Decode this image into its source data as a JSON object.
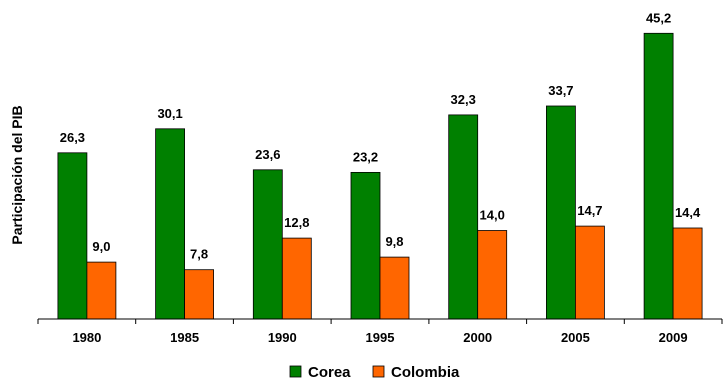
{
  "chart_data": {
    "type": "bar",
    "title": "",
    "xlabel": "",
    "ylabel": "Participación del PIB",
    "categories": [
      "1980",
      "1985",
      "1990",
      "1995",
      "2000",
      "2005",
      "2009"
    ],
    "series": [
      {
        "name": "Corea",
        "color": "#008000",
        "values": [
          26.3,
          30.1,
          23.6,
          23.2,
          32.3,
          33.7,
          45.2
        ],
        "labels": [
          "26,3",
          "30,1",
          "23,6",
          "23,2",
          "32,3",
          "33,7",
          "45,2"
        ]
      },
      {
        "name": "Colombia",
        "color": "#FF6600",
        "values": [
          9.0,
          7.8,
          12.8,
          9.8,
          14.0,
          14.7,
          14.4
        ],
        "labels": [
          "9,0",
          "7,8",
          "12,8",
          "9,8",
          "14,0",
          "14,7",
          "14,4"
        ]
      }
    ],
    "ylim": [
      0,
      50
    ],
    "grid": false,
    "legend": "bottom"
  }
}
